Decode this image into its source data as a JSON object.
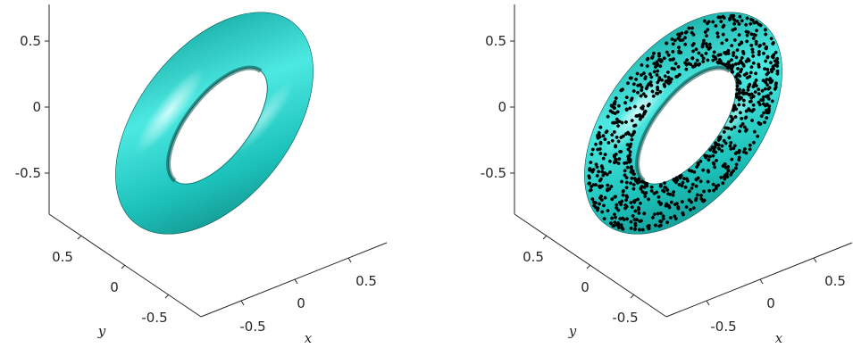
{
  "chart_data": [
    {
      "type": "surface",
      "surface": "torus",
      "show_points": false,
      "z_ticks": [
        "0.5",
        "0",
        "-0.5"
      ],
      "y_ticks": [
        "0.5",
        "0",
        "-0.5"
      ],
      "x_ticks": [
        "-0.5",
        "0",
        "0.5"
      ],
      "xlabel": "x",
      "ylabel": "y",
      "zlabel": "",
      "surface_color": "#00d8d0",
      "grid": false
    },
    {
      "type": "surface-with-scatter",
      "surface": "torus",
      "show_points": true,
      "point_color": "#000000",
      "z_ticks": [
        "0.5",
        "0",
        "-0.5"
      ],
      "y_ticks": [
        "0.5",
        "0",
        "-0.5"
      ],
      "x_ticks": [
        "-0.5",
        "0",
        "0.5"
      ],
      "xlabel": "x",
      "ylabel": "y",
      "zlabel": "",
      "surface_color": "#00d8d0",
      "grid": false
    }
  ]
}
